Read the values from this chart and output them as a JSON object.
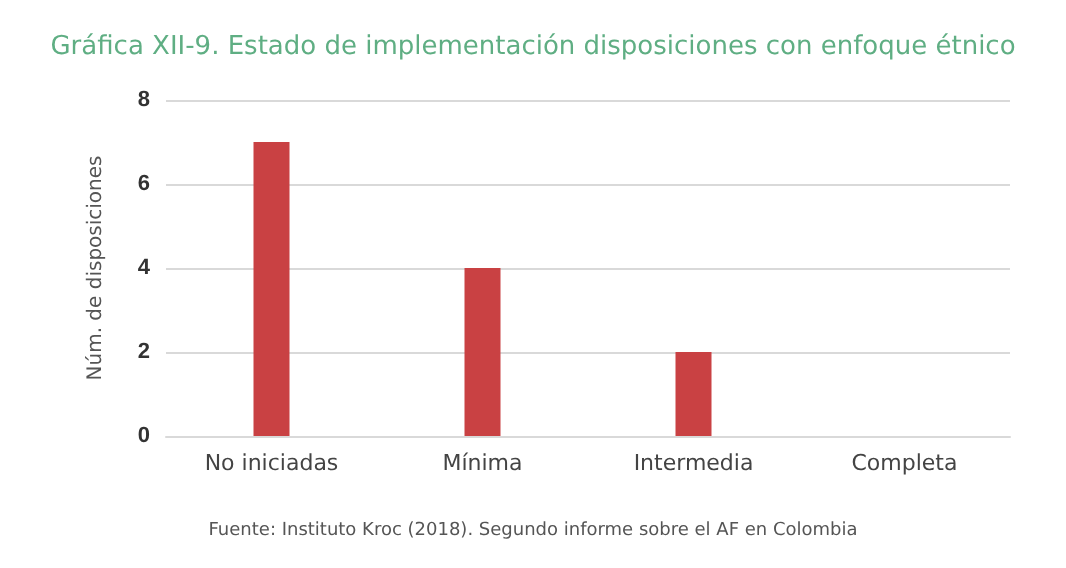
{
  "chart_data": {
    "type": "bar",
    "title": "Gráfica XII-9. Estado de implementación disposiciones con enfoque étnico",
    "ylabel": "Núm. de disposiciones",
    "categories": [
      "No iniciadas",
      "Mínima",
      "Intermedia",
      "Completa"
    ],
    "values": [
      7,
      4,
      2,
      0
    ],
    "color": "#c94143",
    "ylim": [
      0,
      8
    ],
    "yticks": [
      0,
      2,
      4,
      6,
      8
    ],
    "grid": "y",
    "annotations": [
      "Fuente: Instituto Kroc (2018). Segundo informe sobre el AF en Colombia"
    ]
  }
}
